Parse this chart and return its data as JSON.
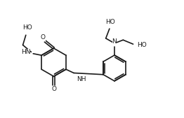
{
  "bg_color": "#ffffff",
  "line_color": "#1a1a1a",
  "line_width": 1.2,
  "font_size": 6.5,
  "figsize": [
    2.62,
    1.69
  ],
  "dpi": 100,
  "xlim": [
    0,
    11
  ],
  "ylim": [
    0,
    7
  ]
}
